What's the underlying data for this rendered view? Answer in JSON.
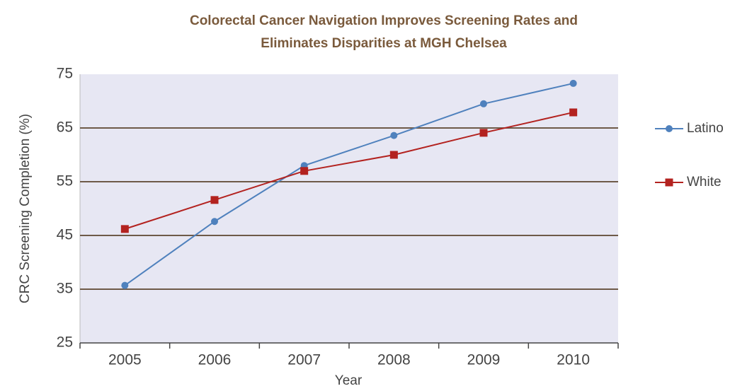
{
  "chart_data": {
    "type": "line",
    "title": [
      "Colorectal Cancer Navigation Improves Screening Rates and",
      "Eliminates Disparities at MGH Chelsea"
    ],
    "x_label": "Year",
    "y_label": "CRC Screening Completion (%)",
    "categories": [
      "2005",
      "2006",
      "2007",
      "2008",
      "2009",
      "2010"
    ],
    "series": [
      {
        "name": "Latino",
        "color": "#4f81bd",
        "marker": "circle",
        "values": [
          35.7,
          47.6,
          58,
          63.6,
          69.5,
          73.3
        ]
      },
      {
        "name": "White",
        "color": "#b3221f",
        "marker": "square",
        "values": [
          46.2,
          51.6,
          57,
          60,
          64.1,
          67.9
        ]
      }
    ],
    "ylim": [
      25,
      75
    ],
    "yticks": [
      25,
      35,
      45,
      55,
      65,
      75
    ],
    "grid": true,
    "legend": "right"
  }
}
